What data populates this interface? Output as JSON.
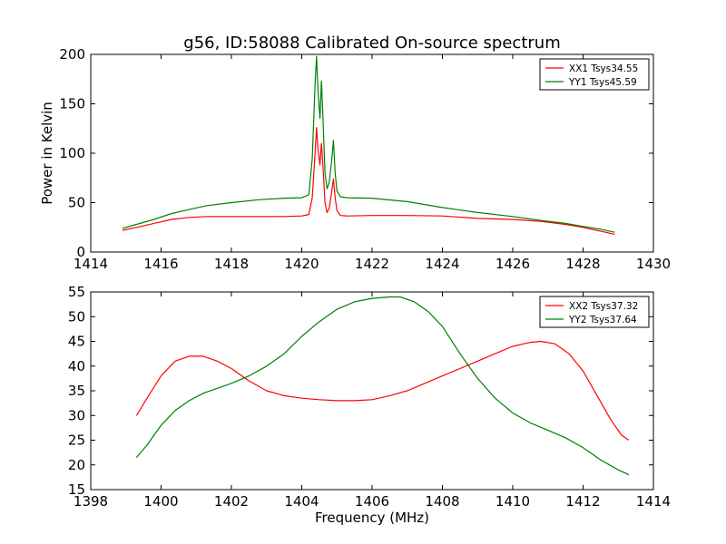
{
  "chart_data": [
    {
      "type": "line",
      "title": "g56, ID:58088 Calibrated On-source spectrum",
      "xlabel": "",
      "ylabel": "Power in Kelvin",
      "xlim": [
        1414,
        1430
      ],
      "ylim": [
        0,
        200
      ],
      "xticks": [
        "1414",
        "1416",
        "1418",
        "1420",
        "1422",
        "1424",
        "1426",
        "1428",
        "1430"
      ],
      "yticks": [
        "0",
        "50",
        "100",
        "150",
        "200"
      ],
      "legend_position": "top-right",
      "series": [
        {
          "name": "XX1 Tsys34.55",
          "color": "#ff0000",
          "x": [
            1414.9,
            1415.3,
            1415.8,
            1416.3,
            1416.8,
            1417.3,
            1418.0,
            1418.8,
            1419.5,
            1420.0,
            1420.2,
            1420.3,
            1420.38,
            1420.42,
            1420.46,
            1420.52,
            1420.56,
            1420.6,
            1420.66,
            1420.72,
            1420.78,
            1420.85,
            1420.9,
            1420.95,
            1421.0,
            1421.1,
            1421.3,
            1422.0,
            1423.0,
            1424.0,
            1425.0,
            1426.0,
            1426.8,
            1427.5,
            1428.0,
            1428.5,
            1428.9
          ],
          "y": [
            22,
            25,
            29,
            33,
            35,
            36,
            36,
            36,
            36,
            36.5,
            38,
            55,
            100,
            126,
            105,
            88,
            110,
            90,
            50,
            40,
            44,
            60,
            74,
            55,
            42,
            37,
            36.5,
            37,
            37,
            36.5,
            34,
            33,
            31,
            28,
            25,
            21,
            18
          ]
        },
        {
          "name": "YY1 Tsys45.59",
          "color": "#008000",
          "x": [
            1414.9,
            1415.3,
            1415.8,
            1416.3,
            1416.8,
            1417.3,
            1418.0,
            1418.8,
            1419.5,
            1420.0,
            1420.2,
            1420.3,
            1420.38,
            1420.42,
            1420.46,
            1420.52,
            1420.56,
            1420.6,
            1420.66,
            1420.72,
            1420.78,
            1420.85,
            1420.9,
            1420.95,
            1421.0,
            1421.1,
            1421.3,
            1422.0,
            1423.0,
            1424.0,
            1425.0,
            1426.0,
            1426.8,
            1427.5,
            1428.0,
            1428.5,
            1428.9
          ],
          "y": [
            24,
            28,
            33,
            39,
            43,
            47,
            50,
            53,
            54.5,
            55,
            58,
            95,
            170,
            198,
            165,
            135,
            173,
            140,
            80,
            64,
            70,
            92,
            113,
            80,
            62,
            56,
            55,
            54.5,
            51,
            45,
            40,
            36,
            32,
            29,
            26,
            23,
            20
          ]
        }
      ]
    },
    {
      "type": "line",
      "title": "",
      "xlabel": "Frequency (MHz)",
      "ylabel": "",
      "xlim": [
        1398,
        1414
      ],
      "ylim": [
        15,
        55
      ],
      "xticks": [
        "1398",
        "1400",
        "1402",
        "1404",
        "1406",
        "1408",
        "1410",
        "1412",
        "1414"
      ],
      "yticks": [
        "15",
        "20",
        "25",
        "30",
        "35",
        "40",
        "45",
        "50",
        "55"
      ],
      "legend_position": "top-right",
      "series": [
        {
          "name": "XX2 Tsys37.32",
          "color": "#ff0000",
          "x": [
            1399.3,
            1399.6,
            1400.0,
            1400.4,
            1400.8,
            1401.2,
            1401.6,
            1402.0,
            1402.5,
            1403.0,
            1403.5,
            1404.0,
            1404.5,
            1405.0,
            1405.5,
            1406.0,
            1406.5,
            1407.0,
            1407.5,
            1408.0,
            1408.5,
            1409.0,
            1409.5,
            1410.0,
            1410.5,
            1410.8,
            1411.2,
            1411.6,
            1412.0,
            1412.4,
            1412.8,
            1413.1,
            1413.3
          ],
          "y": [
            30,
            33.5,
            38,
            41,
            42,
            42,
            41,
            39.5,
            37,
            35,
            34,
            33.5,
            33.2,
            33,
            33,
            33.2,
            34,
            35,
            36.5,
            38,
            39.5,
            41,
            42.5,
            44,
            44.8,
            45,
            44.5,
            42.5,
            39,
            34,
            29,
            26,
            25
          ]
        },
        {
          "name": "YY2 Tsys37.64",
          "color": "#008000",
          "x": [
            1399.3,
            1399.6,
            1400.0,
            1400.4,
            1400.8,
            1401.2,
            1401.6,
            1402.0,
            1402.5,
            1403.0,
            1403.5,
            1404.0,
            1404.5,
            1405.0,
            1405.5,
            1406.0,
            1406.5,
            1406.8,
            1407.2,
            1407.6,
            1408.0,
            1408.5,
            1409.0,
            1409.5,
            1410.0,
            1410.5,
            1411.0,
            1411.5,
            1412.0,
            1412.5,
            1413.0,
            1413.3
          ],
          "y": [
            21.5,
            24,
            28,
            31,
            33,
            34.5,
            35.5,
            36.5,
            38,
            40,
            42.5,
            46,
            49,
            51.5,
            53,
            53.7,
            54,
            54,
            53,
            51,
            48,
            42.5,
            37.5,
            33.5,
            30.5,
            28.5,
            27,
            25.5,
            23.5,
            21,
            19,
            18
          ]
        }
      ]
    }
  ]
}
